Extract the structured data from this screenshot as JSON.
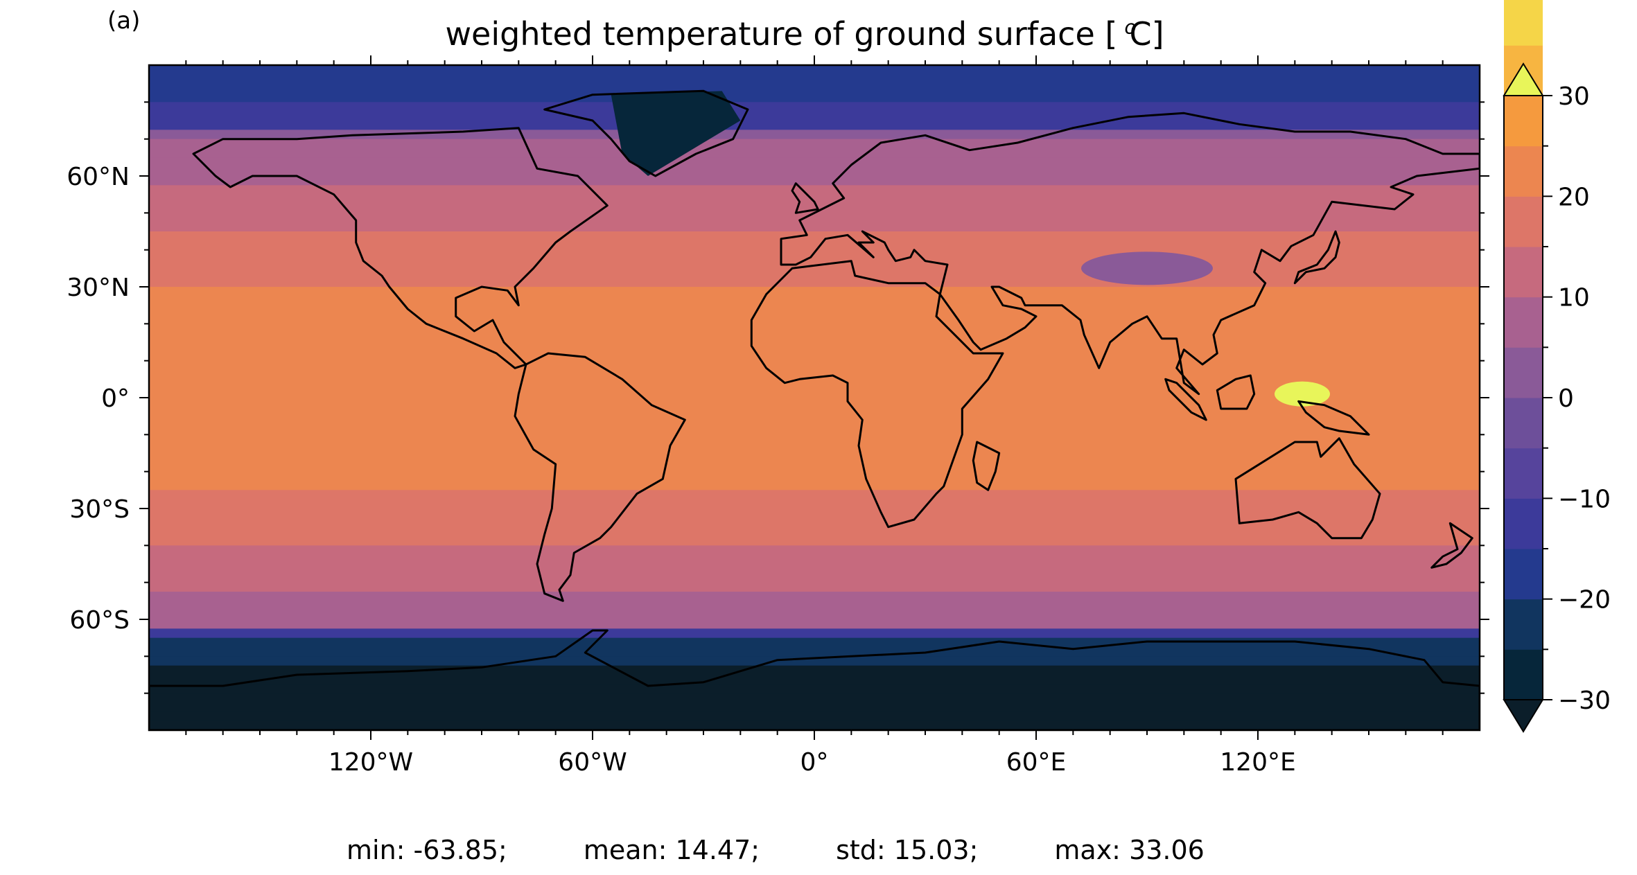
{
  "panel_label": "(a)",
  "title_main": "weighted temperature of ground surface [",
  "title_sup": "o",
  "title_end": "C]",
  "latitude_ticks": [
    {
      "value": 60,
      "label": "60°N"
    },
    {
      "value": 30,
      "label": "30°N"
    },
    {
      "value": 0,
      "label": "0°"
    },
    {
      "value": -30,
      "label": "30°S"
    },
    {
      "value": -60,
      "label": "60°S"
    }
  ],
  "longitude_ticks": [
    {
      "value": -120,
      "label": "120°W"
    },
    {
      "value": -60,
      "label": "60°W"
    },
    {
      "value": 0,
      "label": "0°"
    },
    {
      "value": 60,
      "label": "60°E"
    },
    {
      "value": 120,
      "label": "120°E"
    }
  ],
  "colorbar": {
    "min": -30,
    "max": 30,
    "step": 5,
    "tick_labels": [
      {
        "value": 30,
        "label": "30"
      },
      {
        "value": 20,
        "label": "20"
      },
      {
        "value": 10,
        "label": "10"
      },
      {
        "value": 0,
        "label": "0"
      },
      {
        "value": -10,
        "label": "−10"
      },
      {
        "value": -20,
        "label": "−20"
      },
      {
        "value": -30,
        "label": "−30"
      }
    ],
    "colors": [
      "#06263a",
      "#11355f",
      "#243a8e",
      "#3c3a9a",
      "#56449c",
      "#6d4f9a",
      "#8a5a98",
      "#a86190",
      "#c66a7e",
      "#dd7668",
      "#ec8650",
      "#f59a3e",
      "#f7b541",
      "#f5d548"
    ],
    "over_color": "#e8f55a",
    "under_color": "#0b1e2a"
  },
  "stats": {
    "min": "min: -63.85;",
    "mean": "mean: 14.47;",
    "std": "std: 15.03;",
    "max": "max: 33.06"
  }
}
